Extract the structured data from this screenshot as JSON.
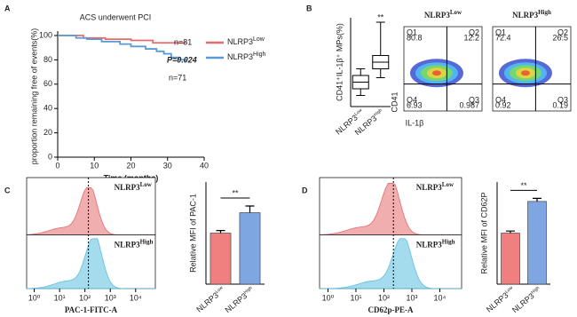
{
  "chart_data": [
    {
      "panel": "A",
      "type": "line",
      "step": true,
      "title": "ACS underwent PCI",
      "x_label": "Time (months)",
      "y_label": "proportion remaining free of events(%)",
      "xlim": [
        0,
        40
      ],
      "xticks": [
        0,
        10,
        20,
        30,
        40
      ],
      "ylim": [
        0,
        100
      ],
      "yticks": [
        0,
        20,
        40,
        60,
        80,
        100
      ],
      "series": [
        {
          "name": "NLRP3",
          "name_sup": "Low",
          "color": "#e46c6c",
          "x": [
            0,
            7,
            13,
            20,
            26,
            35
          ],
          "values": [
            100,
            98,
            97,
            96,
            94,
            94
          ]
        },
        {
          "name": "NLRP3",
          "name_sup": "High",
          "color": "#5b9bd5",
          "x": [
            0,
            5,
            8,
            12,
            17,
            20,
            24,
            27,
            29,
            31,
            33,
            35
          ],
          "values": [
            100,
            98,
            97,
            95,
            93,
            91,
            89,
            87,
            85,
            82,
            80,
            79
          ]
        }
      ],
      "annotations": [
        "n=81",
        "P=0.024",
        "n=71"
      ]
    },
    {
      "panel": "B",
      "type": "box",
      "y_label": "CD41⁺IL-1β⁺ MPs(%)",
      "ylim": [
        0,
        40
      ],
      "categories": [
        "NLRP3",
        "NLRP3"
      ],
      "category_sups": [
        "Low",
        "High"
      ],
      "boxes": [
        {
          "min": 5,
          "q1": 8,
          "median": 11,
          "q3": 14,
          "max": 17
        },
        {
          "min": 13,
          "q1": 17,
          "median": 20,
          "q3": 23,
          "max": 38
        }
      ],
      "annotation": "**"
    },
    {
      "type": "density",
      "x_label": "IL-1β",
      "y_label": "CD41",
      "plots": [
        {
          "title": "NLRP3",
          "title_sup": "Low",
          "quadrants": [
            {
              "label": "Q1",
              "value": 80.8
            },
            {
              "label": "Q2",
              "value": 12.2
            },
            {
              "label": "Q4",
              "value": 6.93
            },
            {
              "label": "Q3",
              "value": 0.987
            }
          ]
        },
        {
          "title": "NLRP3",
          "title_sup": "High",
          "quadrants": [
            {
              "label": "Q1",
              "value": 72.4
            },
            {
              "label": "Q2",
              "value": 26.5
            },
            {
              "label": "Q4",
              "value": 0.92
            },
            {
              "label": "Q3",
              "value": 0.19
            }
          ]
        }
      ]
    },
    {
      "panel": "C",
      "type": "flow-histogram",
      "x_label": "PAC-1-FITC-A",
      "log": true,
      "xlim": [
        0.5,
        60000
      ],
      "xticks": [
        {
          "value": 1,
          "label": "10⁰"
        },
        {
          "value": 10,
          "label": "10¹"
        },
        {
          "value": 100,
          "label": "10²"
        },
        {
          "value": 1000,
          "label": "10³"
        },
        {
          "value": 10000,
          "label": "10⁴"
        }
      ],
      "series": [
        {
          "name": "NLRP3",
          "name_sup": "Low",
          "color": "#e46c6c"
        },
        {
          "name": "NLRP3",
          "name_sup": "High",
          "color": "#5bc0de"
        }
      ]
    },
    {
      "type": "bar",
      "y_label": "Relative MFI of PAC-1",
      "ylim": [
        0,
        2
      ],
      "categories": [
        "NLRP3",
        "NLRP3"
      ],
      "category_sups": [
        "Low",
        "High"
      ],
      "values": [
        1.0,
        1.4
      ],
      "errors": [
        0.05,
        0.13
      ],
      "colors": [
        "#f08080",
        "#7ea6e0"
      ],
      "annotation": "**"
    },
    {
      "panel": "D",
      "type": "flow-histogram",
      "x_label": "CD62p-PE-A",
      "log": true,
      "xlim": [
        0.5,
        60000
      ],
      "xticks": [
        {
          "value": 1,
          "label": "10⁰"
        },
        {
          "value": 10,
          "label": "10¹"
        },
        {
          "value": 100,
          "label": "10²"
        },
        {
          "value": 1000,
          "label": "10³"
        },
        {
          "value": 10000,
          "label": "10⁴"
        }
      ],
      "series": [
        {
          "name": "NLRP3",
          "name_sup": "Low",
          "color": "#e46c6c"
        },
        {
          "name": "NLRP3",
          "name_sup": "High",
          "color": "#5bc0de"
        }
      ]
    },
    {
      "type": "bar",
      "y_label": "Relative MFI of CD62P",
      "ylim": [
        0,
        2
      ],
      "categories": [
        "NLRP3",
        "NLRP3"
      ],
      "category_sups": [
        "Low",
        "High"
      ],
      "values": [
        1.0,
        1.62
      ],
      "errors": [
        0.04,
        0.06
      ],
      "colors": [
        "#f08080",
        "#7ea6e0"
      ],
      "annotation": "**"
    }
  ]
}
